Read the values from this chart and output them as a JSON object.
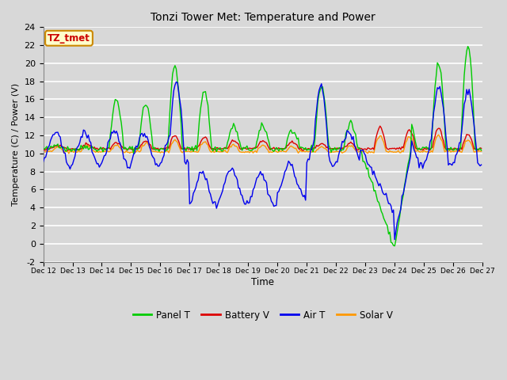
{
  "title": "Tonzi Tower Met: Temperature and Power",
  "xlabel": "Time",
  "ylabel": "Temperature (C) / Power (V)",
  "ylim": [
    -2,
    24
  ],
  "yticks": [
    -2,
    0,
    2,
    4,
    6,
    8,
    10,
    12,
    14,
    16,
    18,
    20,
    22,
    24
  ],
  "bg_color": "#d8d8d8",
  "grid_color": "#ffffff",
  "annotation_label": "TZ_tmet",
  "annotation_bg": "#ffffcc",
  "annotation_border": "#cc8800",
  "annotation_text_color": "#cc0000",
  "legend_entries": [
    "Panel T",
    "Battery V",
    "Air T",
    "Solar V"
  ],
  "legend_colors": [
    "#00cc00",
    "#dd0000",
    "#0000ee",
    "#ff9900"
  ],
  "n_points": 360,
  "xtick_labels": [
    "Dec 12",
    "Dec 13",
    "Dec 14",
    "Dec 15",
    "Dec 16",
    "Dec 17",
    "Dec 18",
    "Dec 19",
    "Dec 20",
    "Dec 21",
    "Dec 22",
    "Dec 23",
    "Dec 24",
    "Dec 25",
    "Dec 26",
    "Dec 27"
  ],
  "xtick_positions": [
    0,
    24,
    48,
    72,
    96,
    120,
    144,
    168,
    192,
    216,
    240,
    264,
    288,
    312,
    336,
    360
  ]
}
